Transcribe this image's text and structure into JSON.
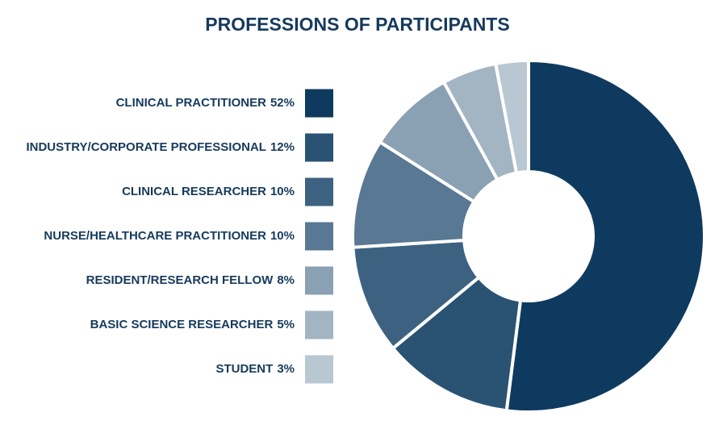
{
  "chart_data": {
    "type": "donut",
    "title": "PROFESSIONS OF PARTICIPANTS",
    "categories": [
      "CLINICAL PRACTITIONER",
      "INDUSTRY/CORPORATE PROFESSIONAL",
      "CLINICAL RESEARCHER",
      "NURSE/HEALTHCARE PRACTITIONER",
      "RESIDENT/RESEARCH FELLOW",
      "BASIC SCIENCE RESEARCHER",
      "STUDENT"
    ],
    "values": [
      52,
      12,
      10,
      10,
      8,
      5,
      3
    ],
    "value_labels": [
      "52%",
      "12%",
      "10%",
      "10%",
      "8%",
      "5%",
      "3%"
    ],
    "colors": [
      "#0f3a5f",
      "#2a5273",
      "#3d6281",
      "#587893",
      "#8aa0b3",
      "#a3b4c3",
      "#b9c7d2"
    ]
  }
}
